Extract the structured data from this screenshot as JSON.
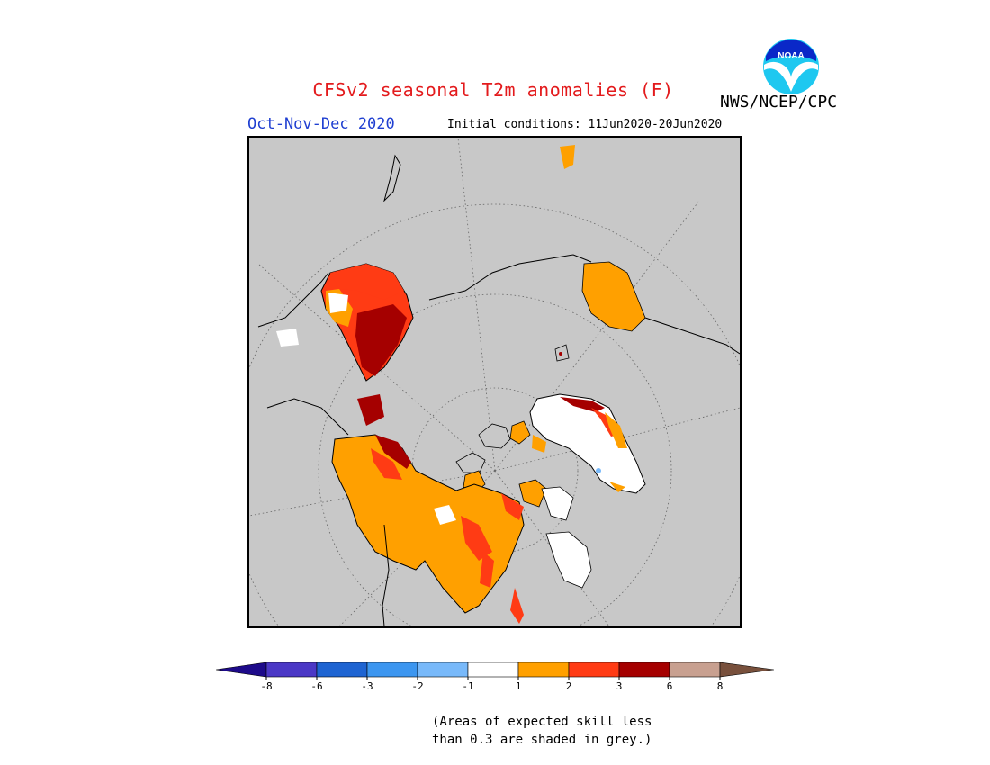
{
  "header": {
    "title": "CFSv2 seasonal T2m anomalies (F)",
    "season": "Oct-Nov-Dec 2020",
    "initial_conditions": "Initial conditions: 11Jun2020-20Jun2020",
    "agency": "NWS/NCEP/CPC",
    "logo_text": "NOAA"
  },
  "colors": {
    "title": "#e31a1c",
    "season": "#1f3fd1",
    "map_background": "#c8c8c8"
  },
  "legend": {
    "tick_labels": [
      "-8",
      "-6",
      "-3",
      "-2",
      "-1",
      "1",
      "2",
      "3",
      "6",
      "8"
    ],
    "colors": [
      "#1d0a8a",
      "#4b38c6",
      "#1e64d2",
      "#3c96f0",
      "#78b9fa",
      "#ffffff",
      "#ffa000",
      "#ff3b14",
      "#a50000",
      "#c8a090",
      "#78503c"
    ]
  },
  "note": {
    "line1": "(Areas of expected skill less",
    "line2": "than 0.3 are shaded in grey.)"
  }
}
